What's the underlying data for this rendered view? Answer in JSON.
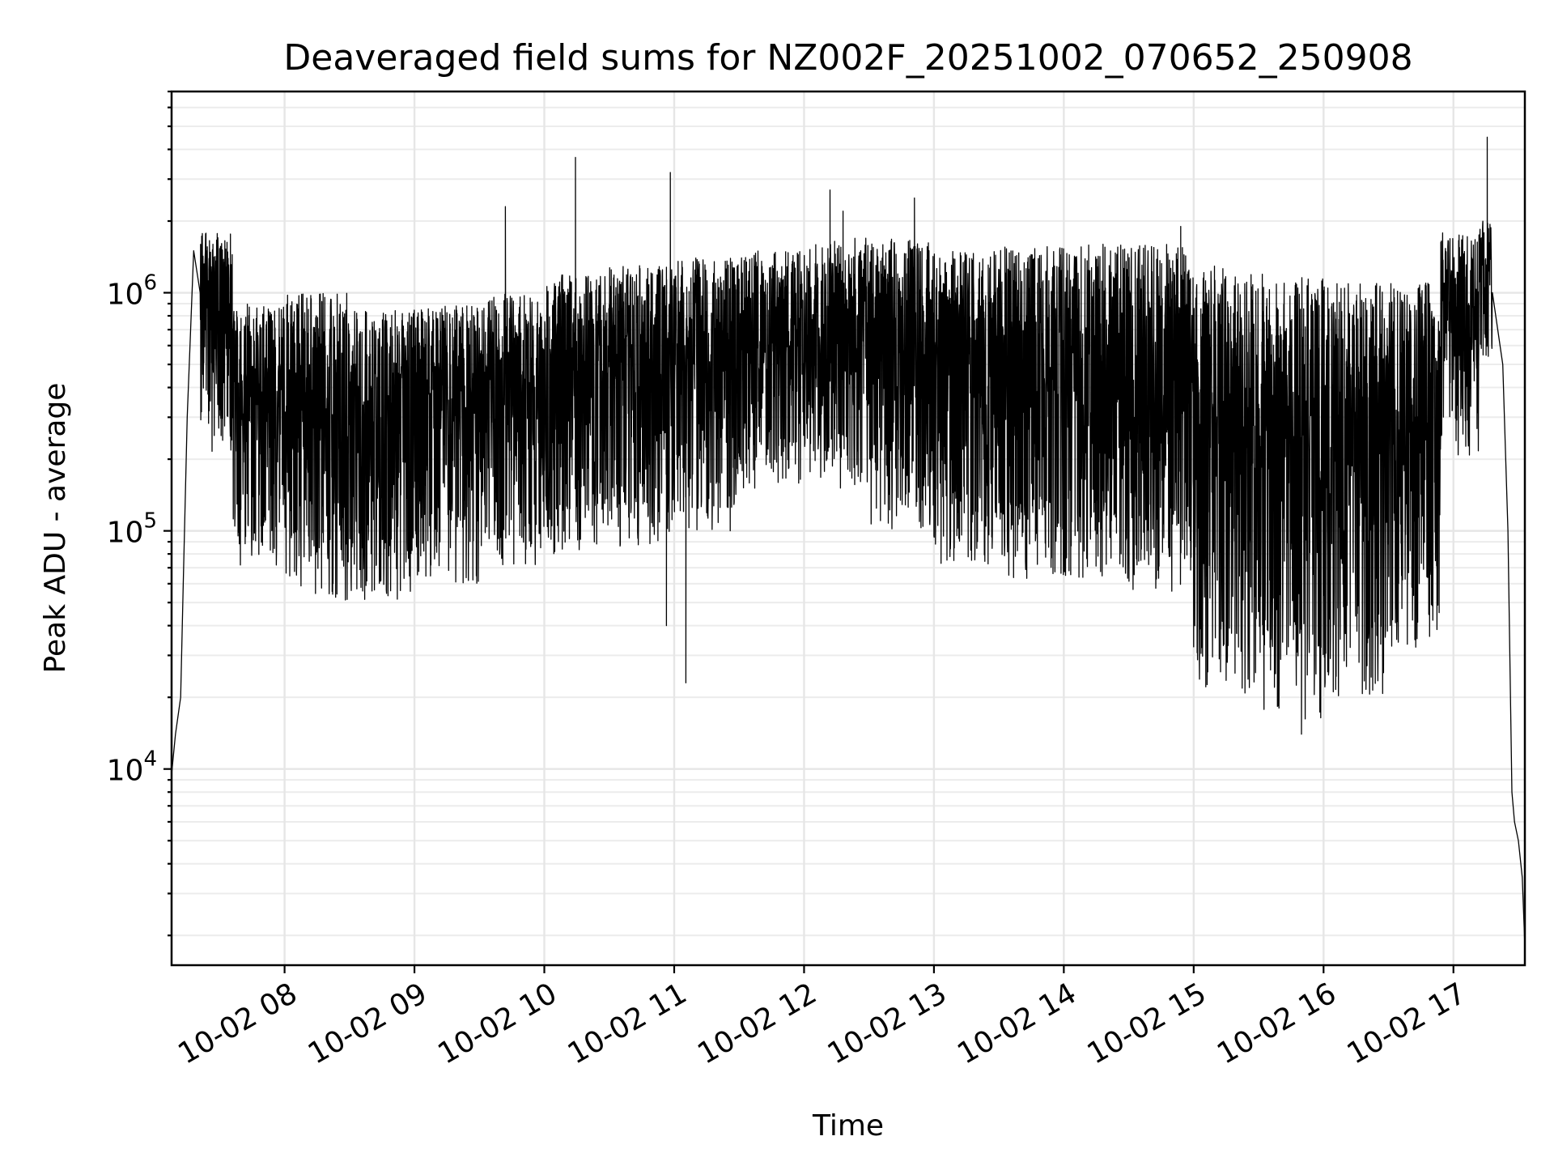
{
  "chart_data": {
    "type": "line",
    "title": "Deaveraged field sums for NZ002F_20251002_070652_250908",
    "xlabel": "Time",
    "ylabel": "Peak ADU - average",
    "yscale": "log",
    "ylim": [
      1500,
      7000000
    ],
    "xlim_hours": [
      7.13,
      17.55
    ],
    "grid": true,
    "line_color": "#000000",
    "x_ticks": [
      {
        "value": 8,
        "label": "10-02 08"
      },
      {
        "value": 9,
        "label": "10-02 09"
      },
      {
        "value": 10,
        "label": "10-02 10"
      },
      {
        "value": 11,
        "label": "10-02 11"
      },
      {
        "value": 12,
        "label": "10-02 12"
      },
      {
        "value": 13,
        "label": "10-02 13"
      },
      {
        "value": 14,
        "label": "10-02 14"
      },
      {
        "value": 15,
        "label": "10-02 15"
      },
      {
        "value": 16,
        "label": "10-02 16"
      },
      {
        "value": 17,
        "label": "10-02 17"
      }
    ],
    "y_ticks": [
      {
        "value": 10000,
        "base": "10",
        "exp": "4"
      },
      {
        "value": 100000,
        "base": "10",
        "exp": "5"
      },
      {
        "value": 1000000,
        "base": "10",
        "exp": "6"
      }
    ],
    "envelope_note": "Dense noisy signal; envelope per interval in hours: [start, end, low, high]",
    "series": [
      {
        "name": "Peak ADU - average",
        "ramp_start": [
          [
            7.13,
            9500
          ],
          [
            7.16,
            14000
          ],
          [
            7.2,
            20000
          ],
          [
            7.22,
            60000
          ],
          [
            7.25,
            300000
          ],
          [
            7.3,
            1500000
          ],
          [
            7.35,
            1000000
          ]
        ],
        "noise_segments": [
          [
            7.35,
            7.6,
            200000,
            1800000
          ],
          [
            7.6,
            8.0,
            70000,
            900000
          ],
          [
            8.0,
            8.5,
            50000,
            1000000
          ],
          [
            8.5,
            9.0,
            50000,
            850000
          ],
          [
            9.0,
            9.5,
            60000,
            900000
          ],
          [
            9.5,
            10.0,
            70000,
            1000000
          ],
          [
            10.0,
            10.5,
            80000,
            1200000
          ],
          [
            10.5,
            11.0,
            80000,
            1300000
          ],
          [
            11.0,
            11.5,
            100000,
            1400000
          ],
          [
            11.5,
            12.0,
            150000,
            1500000
          ],
          [
            12.0,
            12.5,
            150000,
            1700000
          ],
          [
            12.5,
            13.0,
            100000,
            1700000
          ],
          [
            13.0,
            13.5,
            70000,
            1500000
          ],
          [
            13.5,
            14.0,
            60000,
            1600000
          ],
          [
            14.0,
            14.5,
            60000,
            1600000
          ],
          [
            14.5,
            15.0,
            55000,
            1600000
          ],
          [
            15.0,
            15.5,
            20000,
            1300000
          ],
          [
            15.5,
            16.0,
            16000,
            1200000
          ],
          [
            16.0,
            16.5,
            20000,
            1100000
          ],
          [
            16.5,
            16.9,
            30000,
            1100000
          ],
          [
            16.9,
            17.2,
            200000,
            1800000
          ],
          [
            17.2,
            17.3,
            500000,
            2000000
          ]
        ],
        "spikes": [
          [
            10.24,
            3700000
          ],
          [
            10.97,
            3200000
          ],
          [
            12.2,
            2700000
          ],
          [
            12.85,
            2500000
          ],
          [
            9.7,
            2300000
          ],
          [
            17.26,
            4500000
          ],
          [
            11.09,
            23000
          ],
          [
            10.94,
            40000
          ],
          [
            15.83,
            14000
          ],
          [
            12.3,
            2200000
          ],
          [
            14.9,
            1900000
          ]
        ],
        "ramp_end": [
          [
            17.3,
            1000000
          ],
          [
            17.38,
            500000
          ],
          [
            17.42,
            100000
          ],
          [
            17.45,
            8000
          ],
          [
            17.47,
            6000
          ],
          [
            17.5,
            5000
          ],
          [
            17.53,
            3500
          ],
          [
            17.55,
            1800
          ]
        ]
      }
    ]
  }
}
